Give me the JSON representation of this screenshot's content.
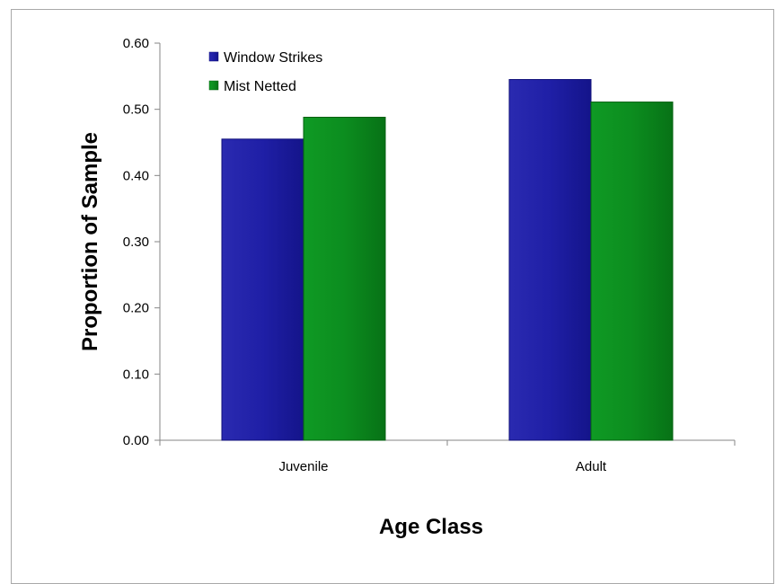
{
  "chart_data": {
    "type": "bar",
    "categories": [
      "Juvenile",
      "Adult"
    ],
    "series": [
      {
        "name": "Window Strikes",
        "values": [
          0.455,
          0.545
        ],
        "color": "#1a1a9c"
      },
      {
        "name": "Mist Netted",
        "values": [
          0.488,
          0.511
        ],
        "color": "#0a8a1e"
      }
    ],
    "xlabel": "Age Class",
    "ylabel": "Proportion of Sample",
    "ylim": [
      0,
      0.6
    ],
    "yticks": [
      "0.00",
      "0.10",
      "0.20",
      "0.30",
      "0.40",
      "0.50",
      "0.60"
    ],
    "grid": false,
    "legend_position": "top-left"
  }
}
